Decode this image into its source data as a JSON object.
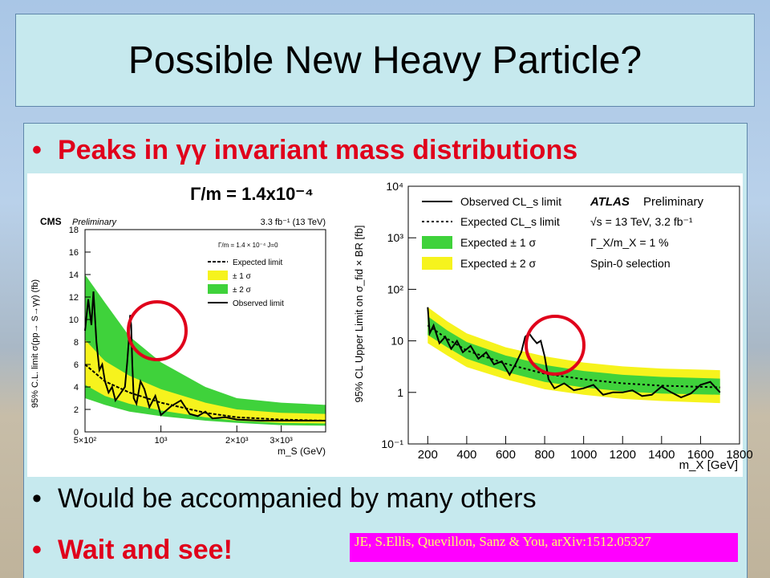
{
  "slide": {
    "title": "Possible New Heavy Particle?",
    "bullets": [
      "Peaks in γγ invariant mass distributions",
      "Would be accompanied by many others",
      "Wait and see!"
    ],
    "bullet_symbol": "•",
    "citation": "JE, S.Ellis, Quevillon, Sanz & You, arXiv:1512.05327"
  },
  "colors": {
    "band1": "#f6f31d",
    "band2": "#3fd23b",
    "highlight": "#e0001b",
    "observed": "#000000"
  },
  "chart_data": [
    {
      "type": "line",
      "experiment": "CMS",
      "tag": "Preliminary",
      "lumi": "3.3 fb⁻¹ (13 TeV)",
      "title": "Γ/m = 1.4x10⁻⁴",
      "xlabel": "m_S (GeV)",
      "ylabel": "95% C.L. limit σ(pp→ S→γγ) (fb)",
      "xscale": "log",
      "xlim": [
        500,
        4500
      ],
      "ylim": [
        0,
        18
      ],
      "xticks": [
        "5×10²",
        "10³",
        "2×10³",
        "3×10³"
      ],
      "yticks": [
        "0",
        "2",
        "4",
        "6",
        "8",
        "10",
        "12",
        "14",
        "16",
        "18"
      ],
      "legend_header": "Γ/m = 1.4 × 10⁻⁴  J=0",
      "legend": [
        "Expected limit",
        "± 1 σ",
        "± 2 σ",
        "Observed limit"
      ],
      "legend_position": "top-right",
      "expected": {
        "x": [
          500,
          600,
          750,
          1000,
          1500,
          2000,
          3000,
          4500
        ],
        "y": [
          6.0,
          4.5,
          3.5,
          2.6,
          1.7,
          1.3,
          1.1,
          1.0
        ]
      },
      "band1": {
        "x": [
          500,
          600,
          750,
          1000,
          1500,
          2000,
          3000,
          4500
        ],
        "lo": [
          4.2,
          3.2,
          2.5,
          1.9,
          1.3,
          1.0,
          0.8,
          0.75
        ],
        "hi": [
          8.2,
          6.3,
          5.0,
          3.8,
          2.6,
          2.0,
          1.7,
          1.6
        ]
      },
      "band2": {
        "x": [
          500,
          600,
          750,
          1000,
          1500,
          2000,
          3000,
          4500
        ],
        "lo": [
          3.0,
          2.4,
          1.8,
          1.4,
          1.0,
          0.8,
          0.6,
          0.55
        ],
        "hi": [
          14.0,
          11.5,
          8.5,
          6.2,
          4.0,
          3.0,
          2.6,
          2.4
        ]
      },
      "observed": {
        "x": [
          500,
          515,
          530,
          540,
          555,
          570,
          585,
          600,
          620,
          640,
          660,
          680,
          700,
          720,
          735,
          745,
          750,
          755,
          762,
          770,
          780,
          800,
          830,
          860,
          900,
          950,
          1000,
          1100,
          1200,
          1300,
          1400,
          1500,
          1600,
          1800,
          2000,
          2500,
          3000,
          4500
        ],
        "y": [
          9.0,
          11.8,
          9.5,
          12.5,
          8.0,
          5.5,
          6.0,
          4.5,
          3.5,
          4.0,
          2.8,
          3.2,
          3.6,
          4.0,
          6.2,
          8.0,
          9.5,
          10.4,
          9.5,
          6.0,
          3.0,
          2.5,
          4.5,
          3.8,
          2.2,
          3.2,
          1.5,
          2.3,
          2.8,
          1.6,
          1.4,
          1.8,
          1.2,
          1.3,
          1.1,
          1.0,
          1.0,
          1.0
        ]
      }
    },
    {
      "type": "line",
      "experiment": "ATLAS",
      "tag": "Preliminary",
      "lumi": "√s = 13 TeV, 3.2 fb⁻¹",
      "width_label": "Γ_X/m_X = 1 %",
      "selection": "Spin-0 selection",
      "xlabel": "m_X [GeV]",
      "ylabel": "95% CL Upper Limit on σ_fid × BR [fb]",
      "yscale": "log",
      "xlim": [
        100,
        1800
      ],
      "ylim": [
        0.1,
        10000
      ],
      "xticks": [
        "200",
        "400",
        "600",
        "800",
        "1000",
        "1200",
        "1400",
        "1600",
        "1800"
      ],
      "yticks": [
        "10⁻¹",
        "1",
        "10",
        "10²",
        "10³",
        "10⁴"
      ],
      "legend": [
        "Observed CL_s limit",
        "Expected CL_s limit",
        "Expected ± 1 σ",
        "Expected ± 2 σ"
      ],
      "legend_position": "top-left",
      "expected": {
        "x": [
          200,
          300,
          400,
          600,
          800,
          1000,
          1200,
          1400,
          1700
        ],
        "y": [
          20,
          11,
          6.5,
          3.6,
          2.3,
          1.8,
          1.5,
          1.35,
          1.25
        ]
      },
      "band1": {
        "x": [
          200,
          300,
          400,
          600,
          800,
          1000,
          1200,
          1400,
          1700
        ],
        "lo": [
          13,
          7.5,
          4.5,
          2.5,
          1.6,
          1.25,
          1.05,
          0.95,
          0.9
        ],
        "hi": [
          30,
          16,
          9.5,
          5.2,
          3.4,
          2.6,
          2.2,
          2.0,
          1.85
        ]
      },
      "band2": {
        "x": [
          200,
          300,
          400,
          600,
          800,
          1000,
          1200,
          1400,
          1700
        ],
        "lo": [
          9,
          5.2,
          3.1,
          1.8,
          1.15,
          0.9,
          0.75,
          0.68,
          0.62
        ],
        "hi": [
          45,
          24,
          14,
          7.5,
          5.0,
          3.8,
          3.2,
          2.9,
          2.7
        ]
      },
      "observed": {
        "x": [
          200,
          210,
          230,
          260,
          290,
          320,
          350,
          380,
          420,
          460,
          500,
          540,
          580,
          620,
          650,
          680,
          700,
          720,
          740,
          760,
          780,
          800,
          820,
          850,
          900,
          950,
          1000,
          1050,
          1100,
          1150,
          1200,
          1250,
          1300,
          1350,
          1400,
          1450,
          1500,
          1550,
          1600,
          1650,
          1700
        ],
        "y": [
          45,
          14,
          20,
          9,
          12,
          7,
          10,
          6,
          8,
          4.5,
          6,
          3.5,
          4,
          2.2,
          3.5,
          6,
          12,
          14,
          11,
          9,
          10,
          5,
          1.8,
          1.2,
          1.5,
          1.1,
          1.2,
          1.4,
          0.9,
          1.0,
          1.0,
          1.1,
          0.85,
          0.9,
          1.3,
          1.0,
          0.8,
          0.95,
          1.4,
          1.6,
          1.0
        ]
      }
    }
  ]
}
